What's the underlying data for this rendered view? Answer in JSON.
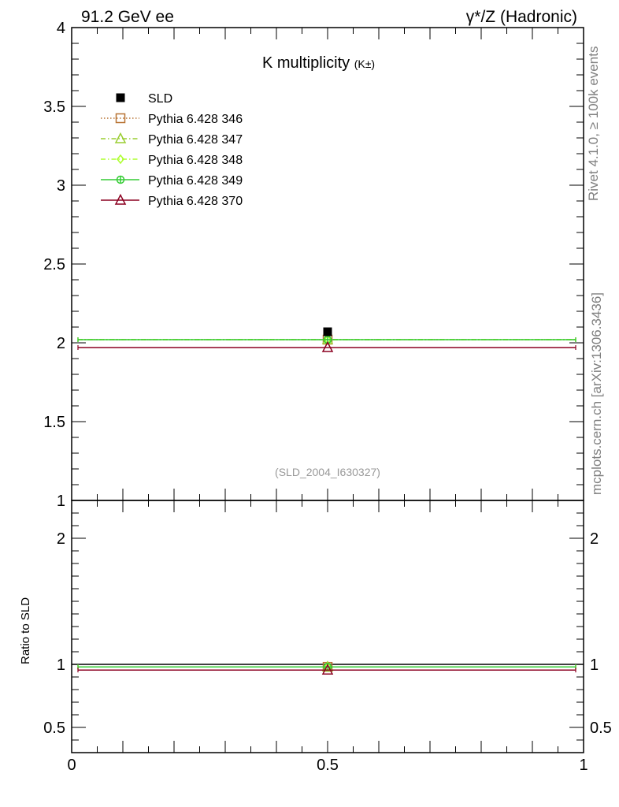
{
  "header": {
    "left": "91.2 GeV ee",
    "right": "γ*/Z (Hadronic)"
  },
  "side_labels": {
    "rivet": "Rivet 4.1.0, ≥ 100k events",
    "mcplots": "mcplots.cern.ch [arXiv:1306.3436]"
  },
  "chart_data": [
    {
      "type": "scatter",
      "panel": "main",
      "title": "K multiplicity",
      "title_suffix": "(K±)",
      "annotation": "(SLD_2004_I630327)",
      "xlim": [
        0,
        1
      ],
      "ylim": [
        1,
        4
      ],
      "yticks": [
        "1",
        "1.5",
        "2",
        "2.5",
        "3",
        "3.5",
        "4"
      ],
      "legend_position": "top-left",
      "series": [
        {
          "name": "SLD",
          "color": "#000000",
          "marker": "filled-square",
          "line": "none",
          "x": [
            0.5
          ],
          "y": [
            2.07
          ],
          "xerr": [
            0.5
          ]
        },
        {
          "name": "Pythia 6.428 346",
          "color": "#b87333",
          "marker": "open-square",
          "line": "dotted",
          "x": [
            0.5
          ],
          "y": [
            2.02
          ],
          "xerr": [
            0.5
          ]
        },
        {
          "name": "Pythia 6.428 347",
          "color": "#9acd32",
          "marker": "open-triangle",
          "line": "dashdot",
          "x": [
            0.5
          ],
          "y": [
            2.02
          ],
          "xerr": [
            0.5
          ]
        },
        {
          "name": "Pythia 6.428 348",
          "color": "#adff2f",
          "marker": "open-diamond",
          "line": "dashdot",
          "x": [
            0.5
          ],
          "y": [
            2.02
          ],
          "xerr": [
            0.5
          ]
        },
        {
          "name": "Pythia 6.428 349",
          "color": "#33cc33",
          "marker": "crossed-circle",
          "line": "solid",
          "x": [
            0.5
          ],
          "y": [
            2.02
          ],
          "xerr": [
            0.5
          ]
        },
        {
          "name": "Pythia 6.428 370",
          "color": "#8b0020",
          "marker": "open-triangle",
          "line": "solid",
          "x": [
            0.5
          ],
          "y": [
            1.97
          ],
          "xerr": [
            0.5
          ]
        }
      ]
    },
    {
      "type": "scatter",
      "panel": "ratio",
      "ylabel": "Ratio to SLD",
      "xlim": [
        0,
        1
      ],
      "ylim": [
        0.3,
        2.3
      ],
      "xticks": [
        "0",
        "0.5",
        "1"
      ],
      "yticks": [
        "0.5",
        "1",
        "2"
      ],
      "series": [
        {
          "name": "Pythia 6.428 346",
          "color": "#b87333",
          "marker": "open-square",
          "x": [
            0.5
          ],
          "y": [
            0.98
          ]
        },
        {
          "name": "Pythia 6.428 347",
          "color": "#9acd32",
          "marker": "open-triangle",
          "x": [
            0.5
          ],
          "y": [
            0.98
          ]
        },
        {
          "name": "Pythia 6.428 348",
          "color": "#adff2f",
          "marker": "open-diamond",
          "x": [
            0.5
          ],
          "y": [
            0.98
          ]
        },
        {
          "name": "Pythia 6.428 349",
          "color": "#33cc33",
          "marker": "crossed-circle",
          "x": [
            0.5
          ],
          "y": [
            0.98
          ]
        },
        {
          "name": "Pythia 6.428 370",
          "color": "#8b0020",
          "marker": "open-triangle",
          "x": [
            0.5
          ],
          "y": [
            0.955
          ]
        }
      ]
    }
  ]
}
